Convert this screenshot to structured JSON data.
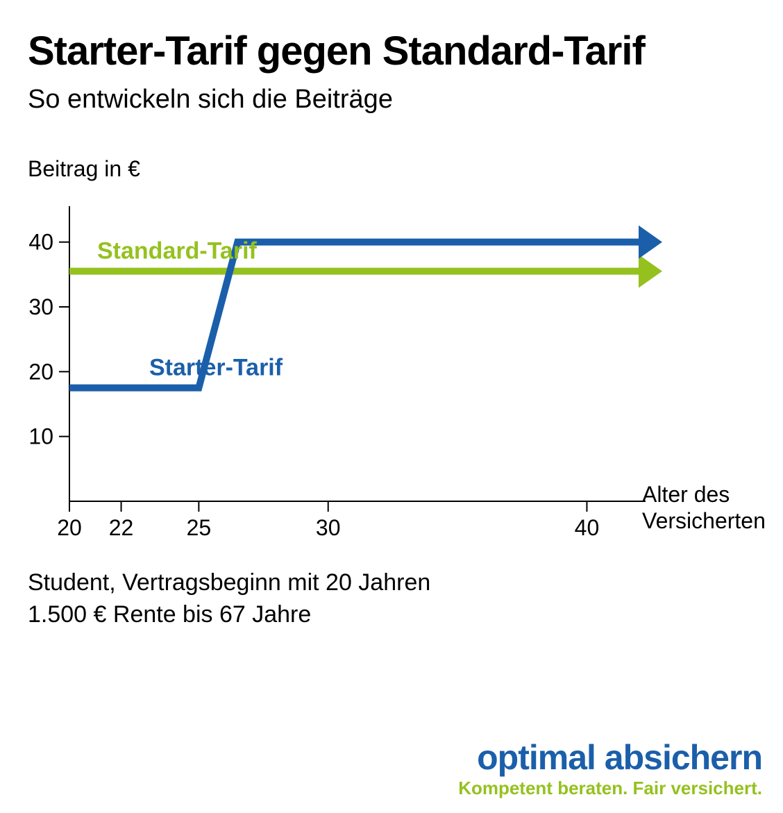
{
  "title": "Starter-Tarif gegen Standard-Tarif",
  "subtitle": "So entwickeln sich die Beiträge",
  "chart": {
    "type": "line",
    "y_axis_label": "Beitrag in €",
    "x_axis_label_line1": "Alter des",
    "x_axis_label_line2": "Versicherten",
    "background_color": "#ffffff",
    "axis_color": "#000000",
    "axis_width": 2,
    "tick_length": 15,
    "font_size_ticks": 32,
    "y_ticks": [
      10,
      20,
      30,
      40
    ],
    "x_ticks": [
      20,
      22,
      25,
      30,
      40
    ],
    "xlim": [
      20,
      42
    ],
    "ylim": [
      0,
      45
    ],
    "series": [
      {
        "name": "Standard-Tarif",
        "label": "Standard-Tarif",
        "color": "#95c11f",
        "width": 10,
        "label_font_size": 34,
        "label_font_weight": 700,
        "points": [
          [
            20,
            35.5
          ],
          [
            42,
            35.5
          ]
        ],
        "arrow": true
      },
      {
        "name": "Starter-Tarif",
        "label": "Starter-Tarif",
        "color": "#1b5faa",
        "width": 10,
        "label_font_size": 34,
        "label_font_weight": 700,
        "points": [
          [
            20,
            17.5
          ],
          [
            25,
            17.5
          ],
          [
            26.5,
            40
          ],
          [
            42,
            40
          ]
        ],
        "arrow": true
      }
    ]
  },
  "caption_line1": "Student, Vertragsbeginn mit 20 Jahren",
  "caption_line2": "1.500 € Rente bis 67 Jahre",
  "brand": {
    "name": "optimal absichern",
    "slogan": "Kompetent beraten. Fair versichert.",
    "name_color": "#1b5faa",
    "slogan_color": "#95c11f"
  }
}
